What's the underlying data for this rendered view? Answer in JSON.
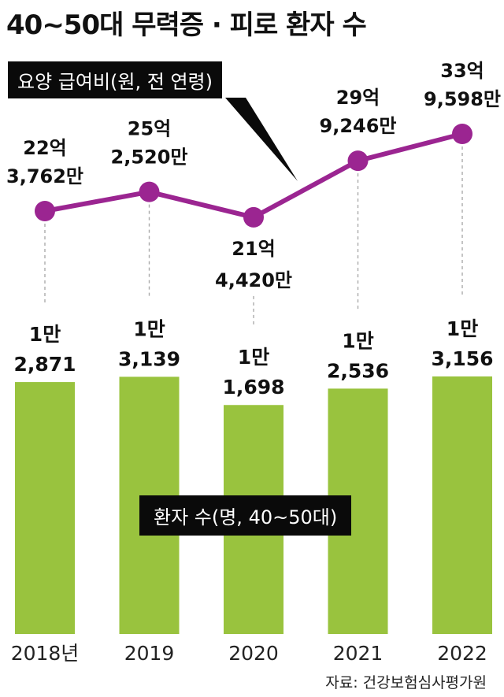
{
  "title": "40~50대 무력증 · 피로 환자 수",
  "source": "자료: 건강보험심사평가원",
  "colors": {
    "bar": "#99c33e",
    "line": "#9b2591",
    "guide": "#aaaaaa",
    "tag_bg": "#0a0a0a"
  },
  "chart_data": {
    "type": "bar+line",
    "categories": [
      "2018년",
      "2019",
      "2020",
      "2021",
      "2022"
    ],
    "series": [
      {
        "name": "환자 수(명, 40~50대)",
        "type": "bar",
        "values": [
          12871,
          13139,
          11698,
          12536,
          13156
        ],
        "labels": [
          [
            "1만",
            "2,871"
          ],
          [
            "1만",
            "3,139"
          ],
          [
            "1만",
            "1,698"
          ],
          [
            "1만",
            "2,536"
          ],
          [
            "1만",
            "3,156"
          ]
        ]
      },
      {
        "name": "요양 급여비(원, 전 연령)",
        "type": "line",
        "values": [
          2237620000,
          2525200000,
          2144200000,
          2992460000,
          3395980000
        ],
        "labels": [
          [
            "22억",
            "3,762만"
          ],
          [
            "25억",
            "2,520만"
          ],
          [
            "21억",
            "4,420만"
          ],
          [
            "29억",
            "9,246만"
          ],
          [
            "33억",
            "9,598만"
          ]
        ]
      }
    ]
  }
}
